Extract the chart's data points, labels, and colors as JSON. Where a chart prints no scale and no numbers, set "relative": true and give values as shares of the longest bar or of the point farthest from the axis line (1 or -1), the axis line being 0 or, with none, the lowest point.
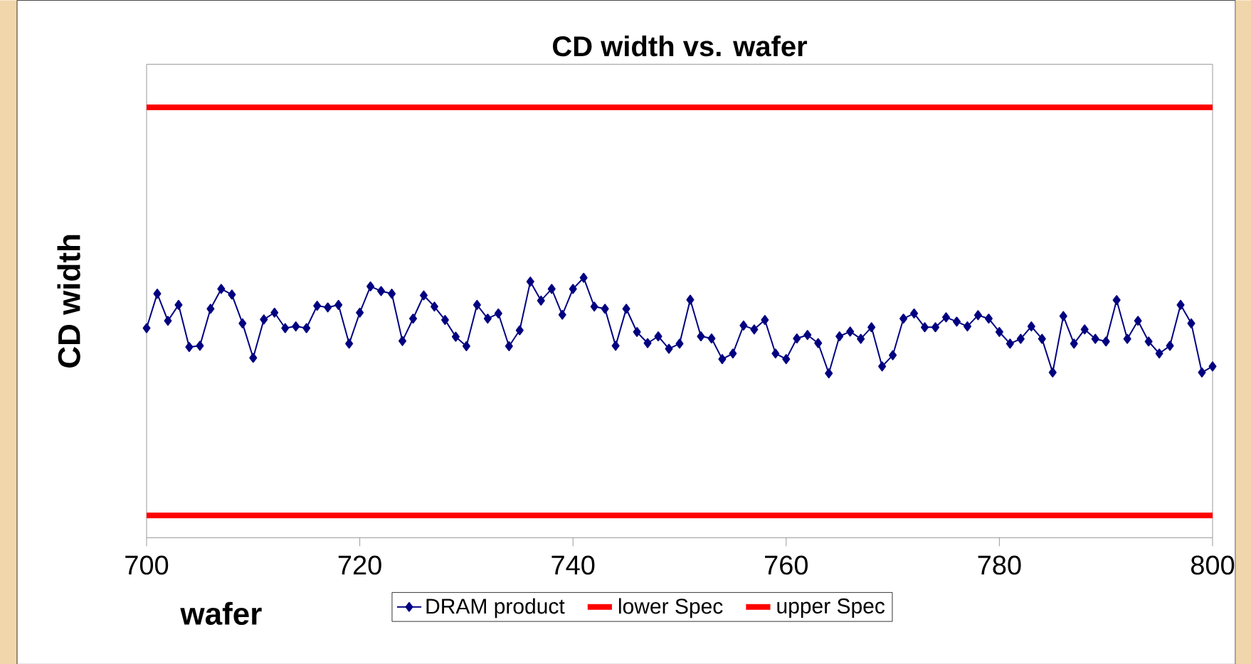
{
  "chart_data": {
    "type": "line",
    "title": "CD width vs. wafer",
    "xlabel": "wafer",
    "ylabel": "CD width",
    "relative": true,
    "xlim": [
      700,
      800
    ],
    "xticks": [
      700,
      720,
      740,
      760,
      780,
      800
    ],
    "tick_labels": "x",
    "grid": false,
    "legend": "bottom",
    "x": [
      700,
      701,
      702,
      703,
      704,
      705,
      706,
      707,
      708,
      709,
      710,
      711,
      712,
      713,
      714,
      715,
      716,
      717,
      718,
      719,
      720,
      721,
      722,
      723,
      724,
      725,
      726,
      727,
      728,
      729,
      730,
      731,
      732,
      733,
      734,
      735,
      736,
      737,
      738,
      739,
      740,
      741,
      742,
      743,
      744,
      745,
      746,
      747,
      748,
      749,
      750,
      751,
      752,
      753,
      754,
      755,
      756,
      757,
      758,
      759,
      760,
      761,
      762,
      763,
      764,
      765,
      766,
      767,
      768,
      769,
      770,
      771,
      772,
      773,
      774,
      775,
      776,
      777,
      778,
      779,
      780,
      781,
      782,
      783,
      784,
      785,
      786,
      787,
      788,
      789,
      790,
      791,
      792,
      793,
      794,
      795,
      796,
      797,
      798,
      799,
      800
    ],
    "series": [
      {
        "name": "DRAM product",
        "color": "#000080",
        "marker": "diamond",
        "values": [
          0.487,
          0.567,
          0.504,
          0.541,
          0.443,
          0.446,
          0.532,
          0.578,
          0.565,
          0.498,
          0.418,
          0.507,
          0.523,
          0.487,
          0.491,
          0.487,
          0.539,
          0.535,
          0.541,
          0.451,
          0.523,
          0.584,
          0.573,
          0.567,
          0.457,
          0.509,
          0.563,
          0.537,
          0.506,
          0.467,
          0.445,
          0.541,
          0.509,
          0.521,
          0.445,
          0.482,
          0.595,
          0.551,
          0.578,
          0.518,
          0.578,
          0.604,
          0.537,
          0.532,
          0.446,
          0.532,
          0.478,
          0.452,
          0.468,
          0.439,
          0.451,
          0.553,
          0.468,
          0.463,
          0.415,
          0.428,
          0.493,
          0.484,
          0.506,
          0.428,
          0.415,
          0.463,
          0.471,
          0.452,
          0.382,
          0.468,
          0.479,
          0.462,
          0.489,
          0.398,
          0.424,
          0.509,
          0.521,
          0.489,
          0.489,
          0.512,
          0.502,
          0.491,
          0.517,
          0.509,
          0.478,
          0.451,
          0.462,
          0.491,
          0.462,
          0.384,
          0.515,
          0.451,
          0.484,
          0.462,
          0.456,
          0.552,
          0.462,
          0.504,
          0.456,
          0.428,
          0.446,
          0.541,
          0.498,
          0.384,
          0.398
        ]
      },
      {
        "name": "lower Spec",
        "color": "#ff0000",
        "marker": "none",
        "values": [
          0.052,
          0.052,
          0.052,
          0.052,
          0.052,
          0.052,
          0.052,
          0.052,
          0.052,
          0.052,
          0.052,
          0.052,
          0.052,
          0.052,
          0.052,
          0.052,
          0.052,
          0.052,
          0.052,
          0.052,
          0.052,
          0.052,
          0.052,
          0.052,
          0.052,
          0.052,
          0.052,
          0.052,
          0.052,
          0.052,
          0.052,
          0.052,
          0.052,
          0.052,
          0.052,
          0.052,
          0.052,
          0.052,
          0.052,
          0.052,
          0.052,
          0.052,
          0.052,
          0.052,
          0.052,
          0.052,
          0.052,
          0.052,
          0.052,
          0.052,
          0.052,
          0.052,
          0.052,
          0.052,
          0.052,
          0.052,
          0.052,
          0.052,
          0.052,
          0.052,
          0.052,
          0.052,
          0.052,
          0.052,
          0.052,
          0.052,
          0.052,
          0.052,
          0.052,
          0.052,
          0.052,
          0.052,
          0.052,
          0.052,
          0.052,
          0.052,
          0.052,
          0.052,
          0.052,
          0.052,
          0.052,
          0.052,
          0.052,
          0.052,
          0.052,
          0.052,
          0.052,
          0.052,
          0.052,
          0.052,
          0.052,
          0.052,
          0.052,
          0.052,
          0.052,
          0.052,
          0.052,
          0.052,
          0.052,
          0.052,
          0.052
        ]
      },
      {
        "name": "upper Spec",
        "color": "#ff0000",
        "marker": "none",
        "values": [
          1,
          1,
          1,
          1,
          1,
          1,
          1,
          1,
          1,
          1,
          1,
          1,
          1,
          1,
          1,
          1,
          1,
          1,
          1,
          1,
          1,
          1,
          1,
          1,
          1,
          1,
          1,
          1,
          1,
          1,
          1,
          1,
          1,
          1,
          1,
          1,
          1,
          1,
          1,
          1,
          1,
          1,
          1,
          1,
          1,
          1,
          1,
          1,
          1,
          1,
          1,
          1,
          1,
          1,
          1,
          1,
          1,
          1,
          1,
          1,
          1,
          1,
          1,
          1,
          1,
          1,
          1,
          1,
          1,
          1,
          1,
          1,
          1,
          1,
          1,
          1,
          1,
          1,
          1,
          1,
          1,
          1,
          1,
          1,
          1,
          1,
          1,
          1,
          1,
          1,
          1,
          1,
          1,
          1,
          1,
          1,
          1,
          1,
          1,
          1,
          1
        ]
      }
    ]
  }
}
